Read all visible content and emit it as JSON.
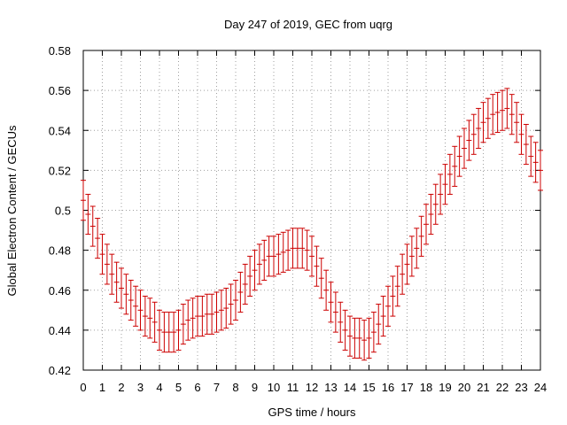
{
  "chart_data": {
    "type": "scatter",
    "title": "Day 247 of 2019, GEC from uqrg",
    "xlabel": "GPS time / hours",
    "ylabel": "Global Electron Content / GECUs",
    "xlim": [
      0,
      24
    ],
    "ylim": [
      0.42,
      0.58
    ],
    "xticks": [
      0,
      1,
      2,
      3,
      4,
      5,
      6,
      7,
      8,
      9,
      10,
      11,
      12,
      13,
      14,
      15,
      16,
      17,
      18,
      19,
      20,
      21,
      22,
      23,
      24
    ],
    "xtick_labels": [
      "0",
      "1",
      "2",
      "3",
      "4",
      "5",
      "6",
      "7",
      "8",
      "9",
      "10",
      "11",
      "12",
      "13",
      "14",
      "15",
      "16",
      "17",
      "18",
      "19",
      "20",
      "21",
      "22",
      "23",
      "24"
    ],
    "yticks": [
      0.42,
      0.44,
      0.46,
      0.48,
      0.5,
      0.52,
      0.54,
      0.56,
      0.58
    ],
    "ytick_labels": [
      "0.42",
      "0.44",
      "0.46",
      "0.48",
      "0.5",
      "0.52",
      "0.54",
      "0.56",
      "0.58"
    ],
    "grid": true,
    "series_color": "#cc0000",
    "error_half_width": 0.01,
    "series": [
      {
        "name": "GEC",
        "x": [
          0,
          0.25,
          0.5,
          0.75,
          1,
          1.25,
          1.5,
          1.75,
          2,
          2.25,
          2.5,
          2.75,
          3,
          3.25,
          3.5,
          3.75,
          4,
          4.25,
          4.5,
          4.75,
          5,
          5.25,
          5.5,
          5.75,
          6,
          6.25,
          6.5,
          6.75,
          7,
          7.25,
          7.5,
          7.75,
          8,
          8.25,
          8.5,
          8.75,
          9,
          9.25,
          9.5,
          9.75,
          10,
          10.25,
          10.5,
          10.75,
          11,
          11.25,
          11.5,
          11.75,
          12,
          12.25,
          12.5,
          12.75,
          13,
          13.25,
          13.5,
          13.75,
          14,
          14.25,
          14.5,
          14.75,
          15,
          15.25,
          15.5,
          15.75,
          16,
          16.25,
          16.5,
          16.75,
          17,
          17.25,
          17.5,
          17.75,
          18,
          18.25,
          18.5,
          18.75,
          19,
          19.25,
          19.5,
          19.75,
          20,
          20.25,
          20.5,
          20.75,
          21,
          21.25,
          21.5,
          21.75,
          22,
          22.25,
          22.5,
          22.75,
          23,
          23.25,
          23.5,
          23.75,
          24
        ],
        "y": [
          0.505,
          0.498,
          0.492,
          0.486,
          0.478,
          0.473,
          0.468,
          0.464,
          0.461,
          0.458,
          0.455,
          0.452,
          0.45,
          0.447,
          0.446,
          0.444,
          0.44,
          0.439,
          0.439,
          0.439,
          0.44,
          0.443,
          0.445,
          0.446,
          0.447,
          0.447,
          0.448,
          0.448,
          0.449,
          0.45,
          0.451,
          0.453,
          0.455,
          0.459,
          0.463,
          0.467,
          0.47,
          0.473,
          0.475,
          0.477,
          0.477,
          0.478,
          0.479,
          0.48,
          0.481,
          0.481,
          0.481,
          0.48,
          0.477,
          0.472,
          0.466,
          0.46,
          0.454,
          0.449,
          0.444,
          0.44,
          0.437,
          0.436,
          0.436,
          0.435,
          0.436,
          0.439,
          0.443,
          0.447,
          0.452,
          0.457,
          0.462,
          0.468,
          0.473,
          0.477,
          0.481,
          0.487,
          0.493,
          0.498,
          0.503,
          0.508,
          0.513,
          0.518,
          0.522,
          0.527,
          0.531,
          0.535,
          0.538,
          0.541,
          0.544,
          0.546,
          0.548,
          0.549,
          0.55,
          0.551,
          0.548,
          0.544,
          0.538,
          0.533,
          0.527,
          0.524,
          0.52
        ]
      }
    ]
  }
}
